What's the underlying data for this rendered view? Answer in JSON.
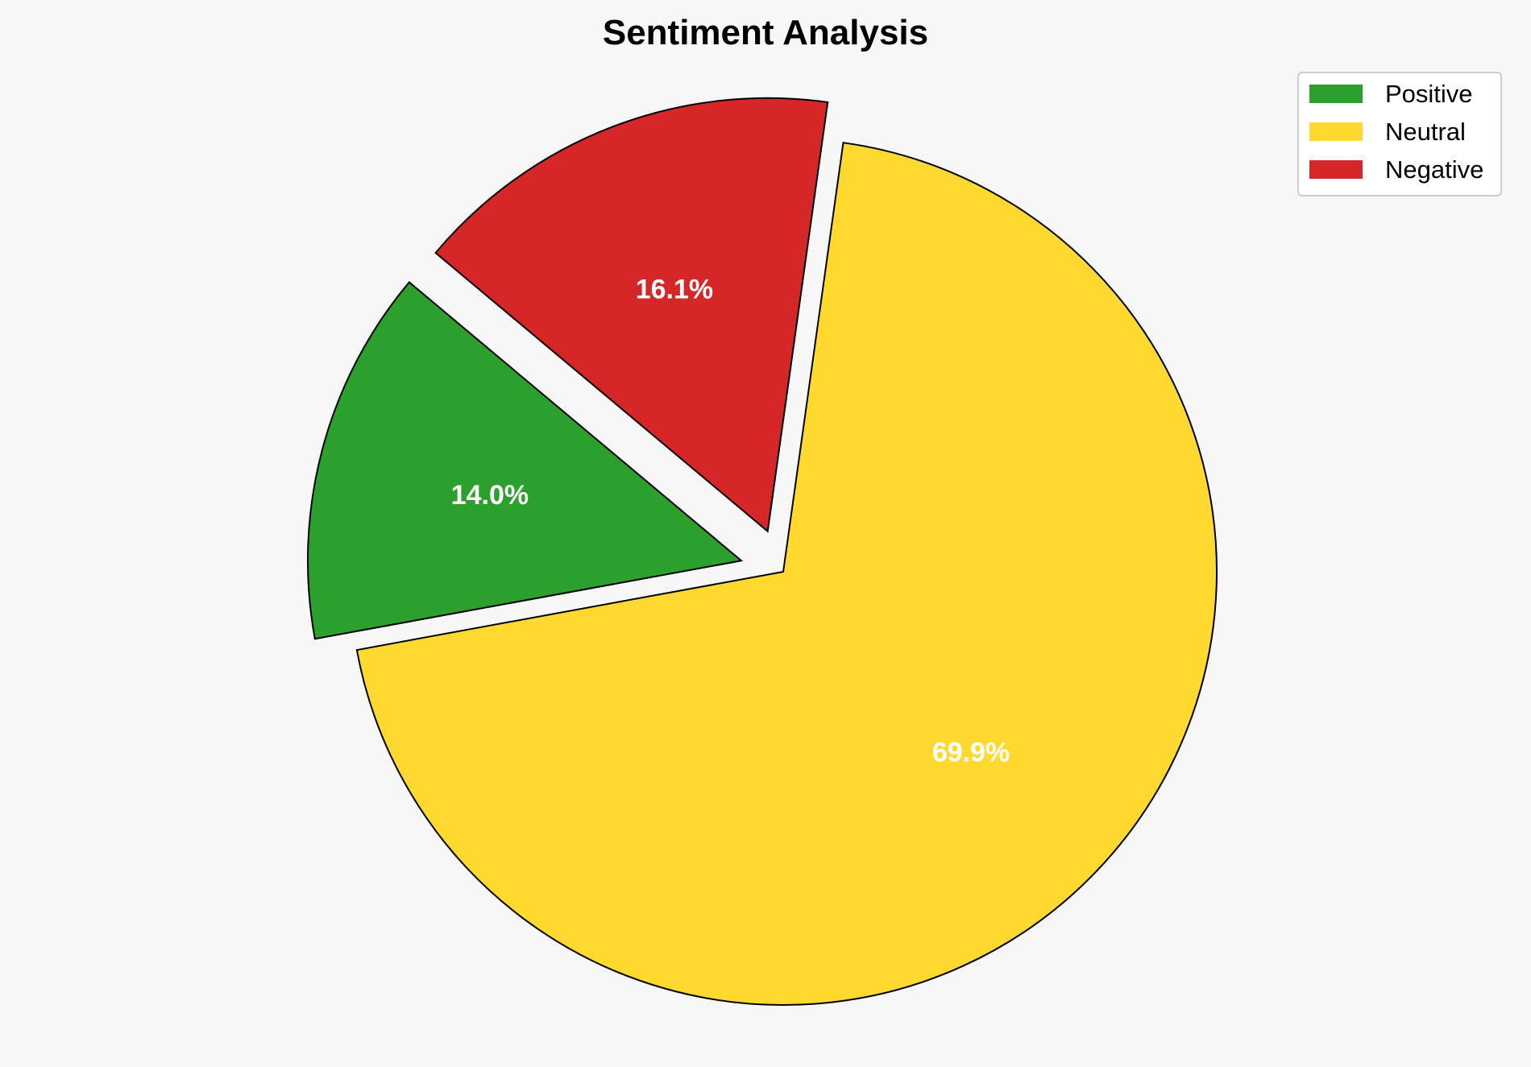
{
  "chart_data": {
    "type": "pie",
    "title": "Sentiment Analysis",
    "categories": [
      "Positive",
      "Neutral",
      "Negative"
    ],
    "values": [
      14.0,
      69.9,
      16.1
    ],
    "labels": [
      "14.0%",
      "69.9%",
      "16.1%"
    ],
    "colors": [
      "#2ca02c",
      "#ffd92f",
      "#d62728"
    ],
    "explode": [
      0.1,
      0,
      0.1
    ],
    "start_angle": 140,
    "direction": "counterclockwise",
    "legend": {
      "position": "top-right",
      "entries": [
        "Positive",
        "Neutral",
        "Negative"
      ]
    }
  }
}
